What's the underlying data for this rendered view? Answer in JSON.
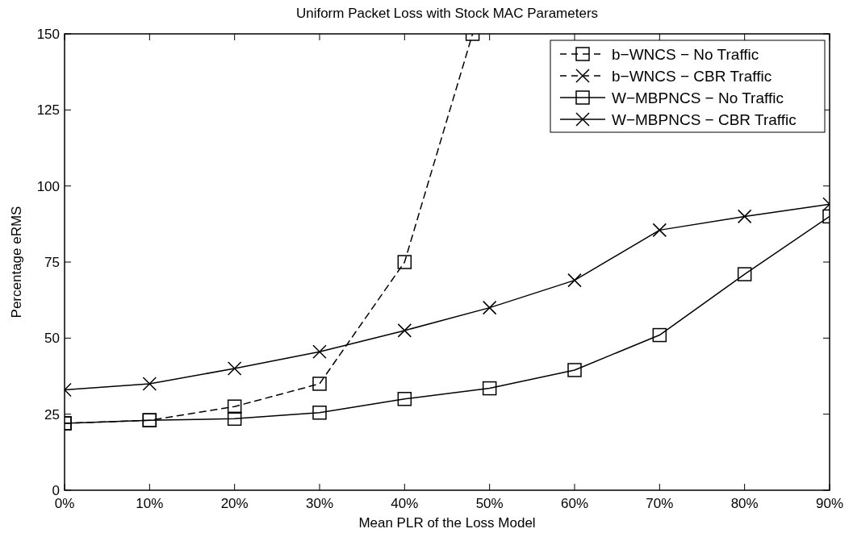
{
  "chart_data": {
    "type": "line",
    "title": "Uniform Packet Loss with Stock MAC Parameters",
    "xlabel": "Mean PLR of the Loss Model",
    "ylabel": "Percentage eRMS",
    "x": [
      0,
      10,
      20,
      30,
      40,
      50,
      60,
      70,
      80,
      90
    ],
    "xlim": [
      0,
      90
    ],
    "xticks": [
      {
        "value": 0,
        "label": "0%"
      },
      {
        "value": 10,
        "label": "10%"
      },
      {
        "value": 20,
        "label": "20%"
      },
      {
        "value": 30,
        "label": "30%"
      },
      {
        "value": 40,
        "label": "40%"
      },
      {
        "value": 50,
        "label": "50%"
      },
      {
        "value": 60,
        "label": "60%"
      },
      {
        "value": 70,
        "label": "70%"
      },
      {
        "value": 80,
        "label": "80%"
      },
      {
        "value": 90,
        "label": "90%"
      }
    ],
    "ylim": [
      0,
      150
    ],
    "yticks": [
      0,
      25,
      50,
      75,
      100,
      125,
      150
    ],
    "grid": false,
    "legend": "top right",
    "series": [
      {
        "name": "b−WNCS − No Traffic",
        "color": "#000000",
        "line_style": "dashed",
        "marker": "square",
        "x": [
          0,
          10,
          20,
          30,
          40,
          48
        ],
        "values": [
          22,
          23,
          27.5,
          35,
          75,
          150
        ]
      },
      {
        "name": "b−WNCS − CBR Traffic",
        "color": "#000000",
        "line_style": "dashed",
        "marker": "cross",
        "values": [
          null,
          null,
          null,
          null,
          null,
          null,
          null,
          null,
          null,
          null
        ]
      },
      {
        "name": "W−MBPNCS − No Traffic",
        "color": "#000000",
        "line_style": "solid",
        "marker": "square",
        "values": [
          22,
          23,
          23.5,
          25.5,
          30,
          33.5,
          39.5,
          51,
          71,
          90
        ]
      },
      {
        "name": "W−MBPNCS − CBR Traffic",
        "color": "#000000",
        "line_style": "solid",
        "marker": "cross",
        "values": [
          33,
          35,
          40,
          45.5,
          52.5,
          60,
          69,
          85.5,
          90,
          94
        ]
      }
    ]
  }
}
